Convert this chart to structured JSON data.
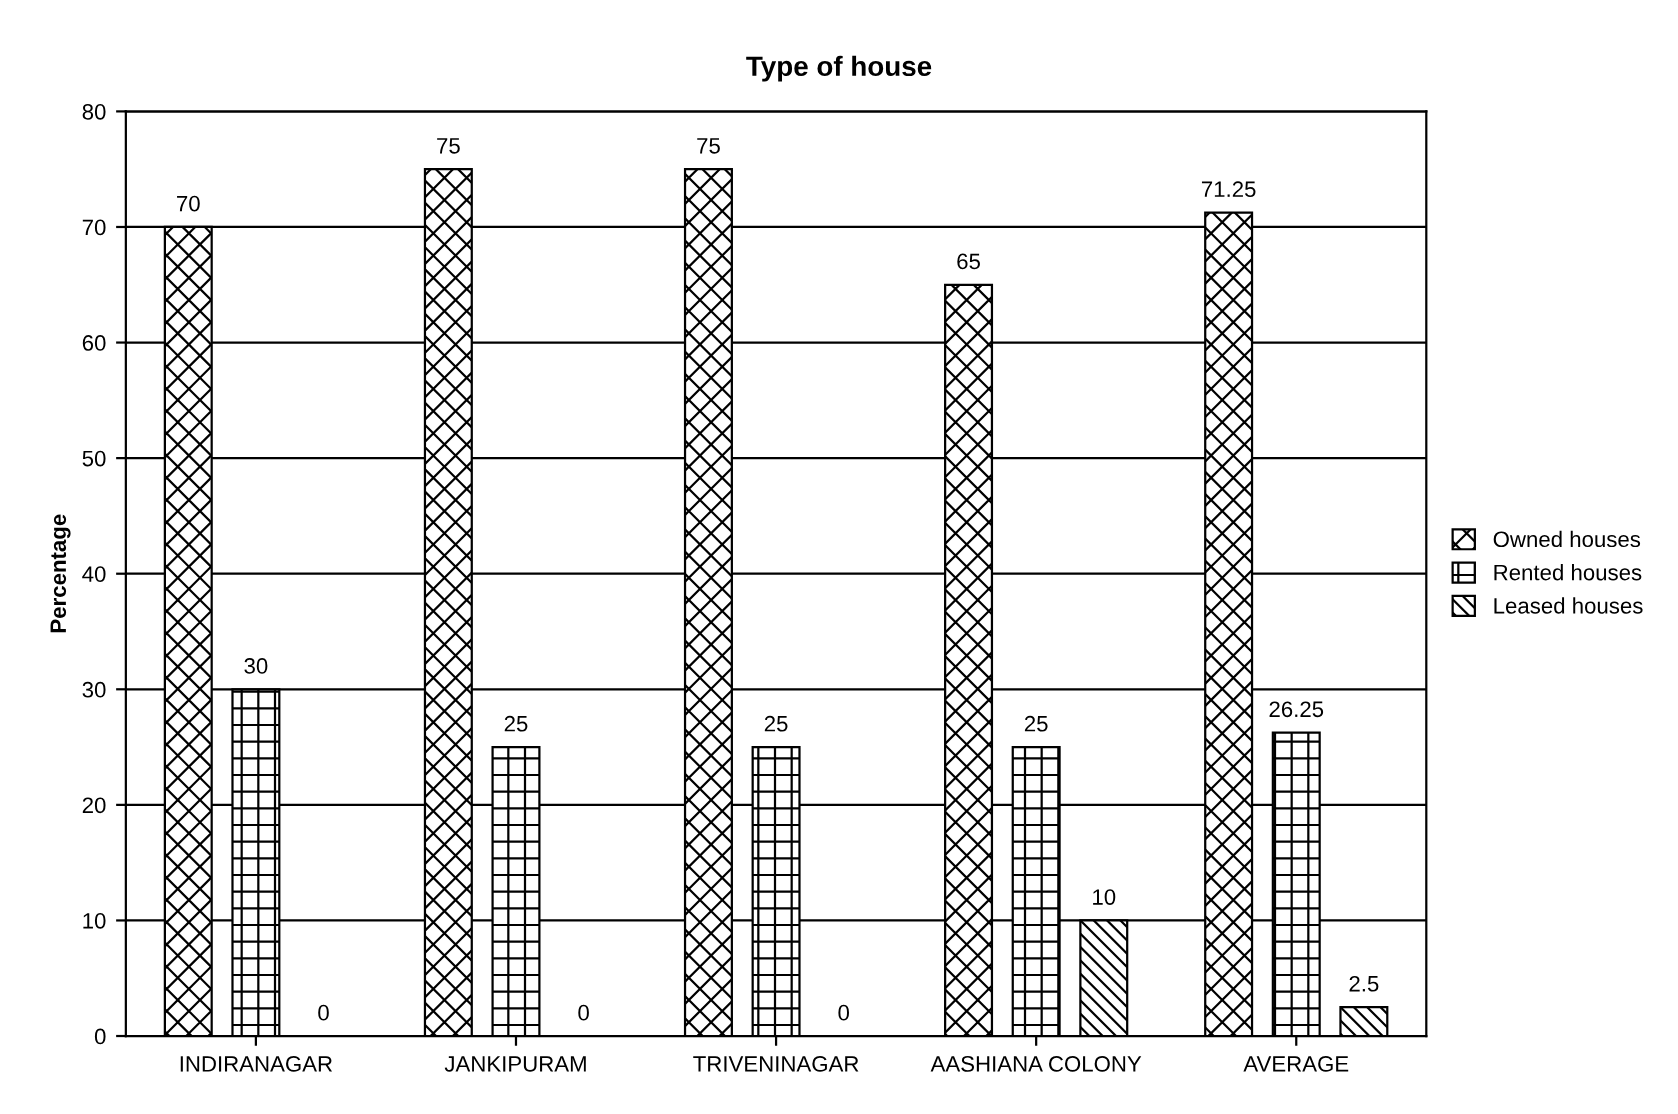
{
  "chart_data": {
    "type": "bar",
    "title": "Type of house",
    "ylabel": "Percentage",
    "categories": [
      "INDIRANAGAR",
      "JANKIPURAM",
      "TRIVENINAGAR",
      "AASHIANA COLONY",
      "AVERAGE"
    ],
    "series": [
      {
        "name": "Owned houses",
        "color": "#000000",
        "values": [
          70,
          75,
          75,
          65,
          71.25
        ]
      },
      {
        "name": "Rented houses",
        "color": "#000000",
        "values": [
          30,
          25,
          25,
          25,
          26.25
        ]
      },
      {
        "name": "Leased houses",
        "color": "#000000",
        "values": [
          0,
          0,
          0,
          10,
          2.5
        ]
      }
    ],
    "ylim": [
      0,
      80
    ],
    "yticks": [
      0,
      10,
      20,
      30,
      40,
      50,
      60,
      70,
      80
    ],
    "grid": "y",
    "legend": "right",
    "data_labels": true
  }
}
